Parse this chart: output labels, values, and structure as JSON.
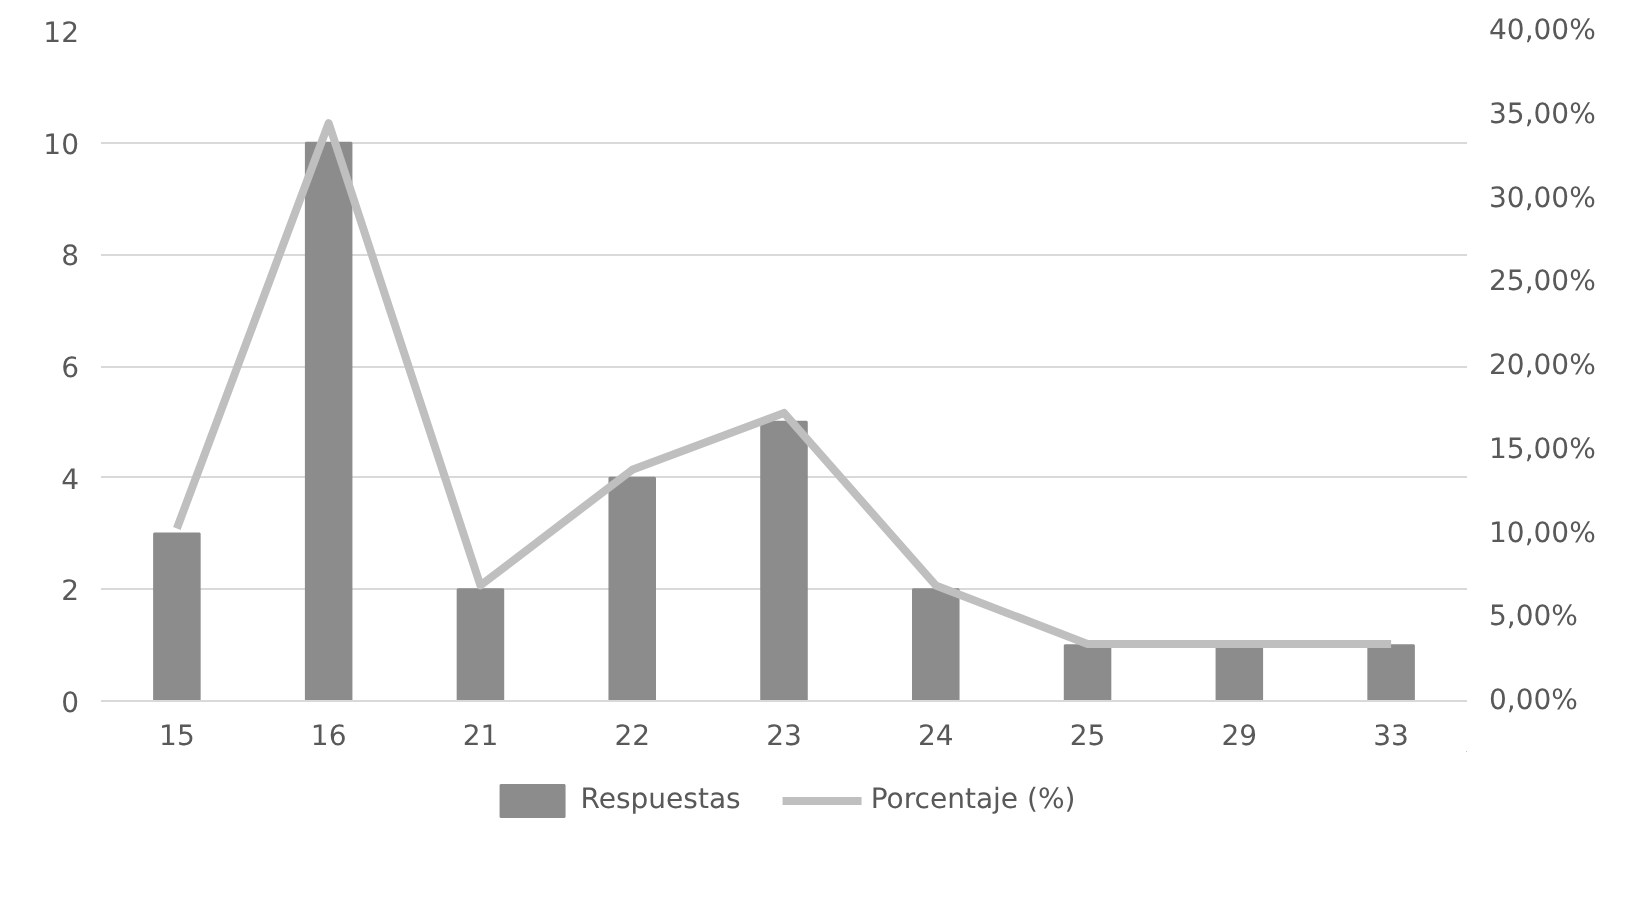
{
  "chart_data": {
    "type": "bar",
    "categories": [
      "15",
      "16",
      "21",
      "22",
      "23",
      "24",
      "25",
      "29",
      "33"
    ],
    "series": [
      {
        "name": "Respuestas",
        "color": "#8c8c8c",
        "values": [
          3,
          10,
          2,
          4,
          5,
          2,
          1,
          1,
          1
        ]
      },
      {
        "name": "Porcentaje (%)",
        "type": "line",
        "axis": "y2",
        "color": "#bfbfbf",
        "values": [
          10.3,
          34.5,
          6.9,
          13.8,
          17.2,
          6.9,
          3.4,
          3.4,
          3.4
        ]
      }
    ],
    "ylim": [
      0,
      12
    ],
    "yticks": [
      0,
      2,
      4,
      6,
      8,
      10,
      12
    ],
    "y2lim": [
      0,
      40
    ],
    "y2ticks": [
      {
        "value": 0,
        "label": "0,00%"
      },
      {
        "value": 5,
        "label": "5,00%"
      },
      {
        "value": 10,
        "label": "10,00%"
      },
      {
        "value": 15,
        "label": "15,00%"
      },
      {
        "value": 20,
        "label": "20,00%"
      },
      {
        "value": 25,
        "label": "25,00%"
      },
      {
        "value": 30,
        "label": "30,00%"
      },
      {
        "value": 35,
        "label": "35,00%"
      },
      {
        "value": 40,
        "label": "40,00%"
      }
    ],
    "grid": "y",
    "legend": "bottom",
    "marker": "none",
    "line_style": "solid"
  }
}
